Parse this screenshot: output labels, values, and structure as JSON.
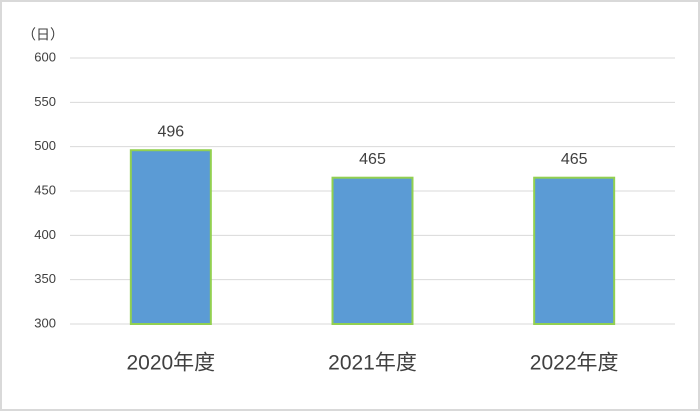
{
  "chart_data": {
    "type": "bar",
    "ylabel": "（日）",
    "categories": [
      "2020年度",
      "2021年度",
      "2022年度"
    ],
    "values": [
      496,
      465,
      465
    ],
    "color": "#5b9bd5",
    "edgecolor": "#92d050",
    "ylim": [
      300,
      600
    ],
    "yticks": [
      300,
      350,
      400,
      450,
      500,
      550,
      600
    ],
    "grid": true
  }
}
